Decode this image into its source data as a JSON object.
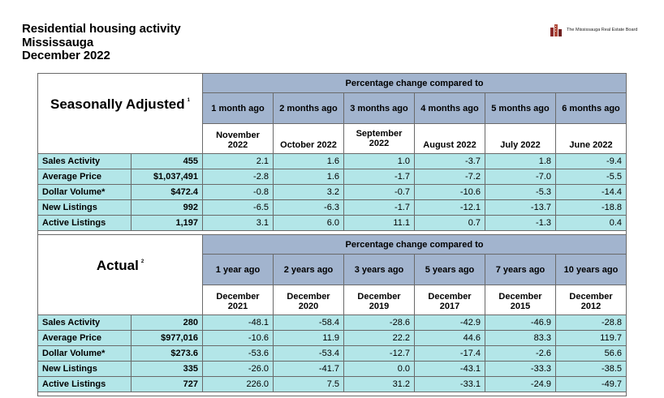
{
  "header": {
    "title": "Residential housing activity",
    "city": "Mississauga",
    "period": "December 2022"
  },
  "logo": {
    "text": "The Mississauga Real Estate Board",
    "icon": "building-icon",
    "color": "#8b2a2a"
  },
  "colors": {
    "banner": "#a2b4ce",
    "row": "#b3e6e8"
  },
  "seasonal": {
    "title": "Seasonally Adjusted",
    "footnote": "1",
    "banner": "Percentage change compared to",
    "periods": [
      "1 month ago",
      "2 months ago",
      "3 months ago",
      "4 months ago",
      "5 months ago",
      "6 months ago"
    ],
    "dates": [
      "November 2022",
      "October 2022",
      "September 2022",
      "August 2022",
      "July 2022",
      "June 2022"
    ],
    "rows": [
      {
        "label": "Sales Activity",
        "value": "455",
        "changes": [
          "2.1",
          "1.6",
          "1.0",
          "-3.7",
          "1.8",
          "-9.4"
        ]
      },
      {
        "label": "Average Price",
        "value": "$1,037,491",
        "changes": [
          "-2.8",
          "1.6",
          "-1.7",
          "-7.2",
          "-7.0",
          "-5.5"
        ]
      },
      {
        "label": "Dollar Volume*",
        "value": "$472.4",
        "changes": [
          "-0.8",
          "3.2",
          "-0.7",
          "-10.6",
          "-5.3",
          "-14.4"
        ]
      },
      {
        "label": "New Listings",
        "value": "992",
        "changes": [
          "-6.5",
          "-6.3",
          "-1.7",
          "-12.1",
          "-13.7",
          "-18.8"
        ]
      },
      {
        "label": "Active Listings",
        "value": "1,197",
        "changes": [
          "3.1",
          "6.0",
          "11.1",
          "0.7",
          "-1.3",
          "0.4"
        ]
      }
    ]
  },
  "actual": {
    "title": "Actual",
    "footnote": "2",
    "banner": "Percentage change compared to",
    "periods": [
      "1 year ago",
      "2 years ago",
      "3 years ago",
      "5 years ago",
      "7 years ago",
      "10 years ago"
    ],
    "dates": [
      "December 2021",
      "December 2020",
      "December 2019",
      "December 2017",
      "December 2015",
      "December 2012"
    ],
    "rows": [
      {
        "label": "Sales Activity",
        "value": "280",
        "changes": [
          "-48.1",
          "-58.4",
          "-28.6",
          "-42.9",
          "-46.9",
          "-28.8"
        ]
      },
      {
        "label": "Average Price",
        "value": "$977,016",
        "changes": [
          "-10.6",
          "11.9",
          "22.2",
          "44.6",
          "83.3",
          "119.7"
        ]
      },
      {
        "label": "Dollar Volume*",
        "value": "$273.6",
        "changes": [
          "-53.6",
          "-53.4",
          "-12.7",
          "-17.4",
          "-2.6",
          "56.6"
        ]
      },
      {
        "label": "New Listings",
        "value": "335",
        "changes": [
          "-26.0",
          "-41.7",
          "0.0",
          "-43.1",
          "-33.3",
          "-38.5"
        ]
      },
      {
        "label": "Active Listings",
        "value": "727",
        "changes": [
          "226.0",
          "7.5",
          "31.2",
          "-33.1",
          "-24.9",
          "-49.7"
        ]
      }
    ]
  }
}
